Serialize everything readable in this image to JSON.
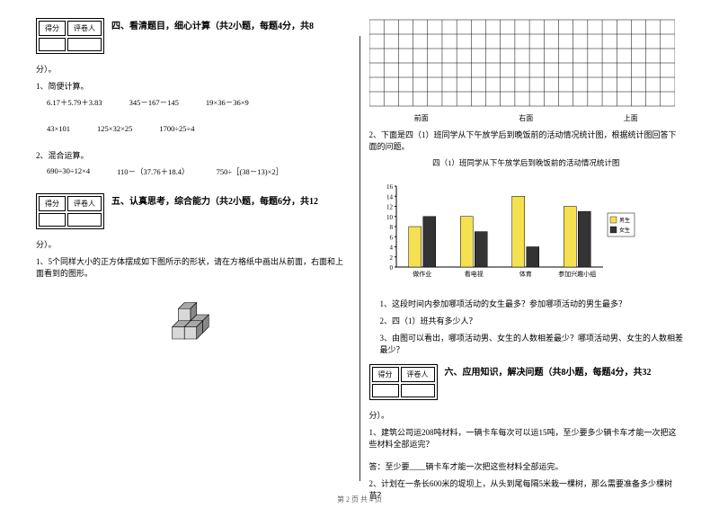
{
  "scoreBox": {
    "score": "得分",
    "reviewer": "评卷人"
  },
  "section4": {
    "title": "四、看清题目，细心计算（共2小题，每题4分，共8",
    "titleCont": "分）。",
    "sub1": "1、简便计算。",
    "row1": {
      "a": "6.17＋5.79＋3.83",
      "b": "345－167－145",
      "c": "19×36－36×9"
    },
    "row2": {
      "a": "43×101",
      "b": "125×32×25",
      "c": "1700÷25÷4"
    },
    "sub2": "2、混合运算。",
    "row3": {
      "a": "690÷30÷12×4",
      "b": "110－（37.76＋18.4）",
      "c": "750÷［(38－13)×2］"
    }
  },
  "section5": {
    "title": "五、认真思考，综合能力（共2小题，每题6分，共12",
    "titleCont": "分）。",
    "q1": "1、5个同样大小的正方体摆成如下图所示的形状，请在方格纸中画出从前面，右面和上面看到的图形。",
    "gridLabels": {
      "front": "前面",
      "right": "右面",
      "top": "上面"
    },
    "q2": "2、下面是四（1）班同学从下午放学后到晚饭前的活动情况统计图，根据统计图回答下面的问题。",
    "chartTitle": "四（1）班同学从下午放学后到晚饭前的活动情况统计图",
    "sub1": "1、这段时间内参加哪项活动的女生最多？参加哪项活动的男生最多？",
    "sub2": "2、四（1）班共有多少人？",
    "sub3": "3、由图可以看出，哪项活动男、女生的人数相差最少？哪项活动男、女生的人数相差最少？"
  },
  "section6": {
    "title": "六、应用知识，解决问题（共8小题，每题4分，共32",
    "titleCont": "分）。",
    "q1": "1、建筑公司运208吨材料，一辆卡车每次可以运15吨，至少要多少辆卡车才能一次把这些材料全部运完？",
    "ans1": "答：至少要____辆卡车才能一次把这些材料全部运完。",
    "q2": "2、计划在一条长600米的堤坝上，从头到尾每隔5米栽一棵树，那么需要准备多少棵树苗？"
  },
  "chart": {
    "categories": [
      "做作业",
      "看电视",
      "体育",
      "参加兴趣小组"
    ],
    "boys": [
      8,
      10,
      14,
      12
    ],
    "girls": [
      10,
      7,
      4,
      11
    ],
    "ymax": 16,
    "ystep": 2,
    "boyColor": "#f5e050",
    "girlColor": "#333333",
    "axisColor": "#000000",
    "legend": {
      "boy": "男生",
      "girl": "女生"
    }
  },
  "cubes": {
    "edge": "#000000",
    "faceLight": "#d8d8d8",
    "faceMid": "#a8a8a8",
    "faceDark": "#888888"
  },
  "gridStyle": {
    "rows": 6,
    "cols": 21,
    "stroke": "#000000"
  },
  "footer": "第 2 页 共 4 页"
}
